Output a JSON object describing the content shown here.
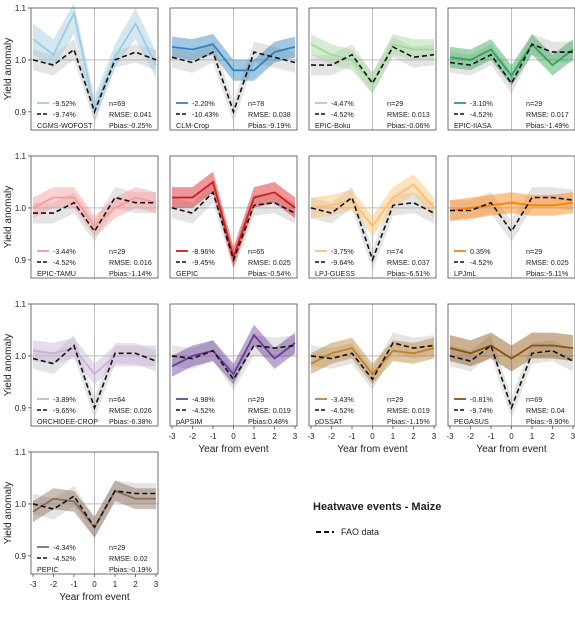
{
  "chart_data": {
    "type": "line",
    "title": "",
    "xlabel": "Year from event",
    "ylabel": "Yield anomaly",
    "x": [
      -3,
      -2,
      -1,
      0,
      1,
      2,
      3
    ],
    "xticks": [
      "-3",
      "-2",
      "-1",
      "0",
      "1",
      "2",
      "3"
    ],
    "ylim": [
      0.865,
      1.1
    ],
    "yticks": [
      "0.9",
      "1.0",
      "1.1"
    ],
    "reference_line": 1.0,
    "legend": {
      "title": "Heatwave events - Maize",
      "fao_label": "FAO data"
    },
    "panels": [
      {
        "model": "CGMS-WOFOST",
        "color": "#9ecae1",
        "model_pct": "-9.52%",
        "fao_pct": "-9.74%",
        "n": "n=69",
        "rmse": "RMSE: 0.041",
        "pbias": "Pbias:-0.25%",
        "model_values": [
          1.04,
          1.01,
          1.09,
          0.905,
          1.005,
          1.07,
          0.99
        ],
        "model_lower": [
          1.01,
          0.985,
          1.05,
          0.88,
          0.985,
          1.04,
          0.965
        ],
        "model_upper": [
          1.07,
          1.04,
          1.11,
          0.93,
          1.03,
          1.1,
          1.015
        ],
        "fao_values": [
          1.0,
          0.99,
          1.02,
          0.9,
          1.0,
          1.015,
          1.0
        ],
        "fao_lower": [
          0.98,
          0.97,
          1.0,
          0.88,
          0.985,
          0.995,
          0.98
        ],
        "fao_upper": [
          1.02,
          1.01,
          1.04,
          0.92,
          1.015,
          1.03,
          1.02
        ]
      },
      {
        "model": "CLM-Crop",
        "color": "#3182bd",
        "model_pct": "-2.20%",
        "fao_pct": "-10.43%",
        "n": "n=78",
        "rmse": "RMSE: 0.038",
        "pbias": "Pbias:-9.19%",
        "model_values": [
          1.025,
          1.02,
          1.03,
          0.98,
          0.98,
          1.015,
          1.025
        ],
        "model_lower": [
          1.005,
          1.0,
          1.01,
          0.96,
          0.96,
          0.995,
          1.005
        ],
        "model_upper": [
          1.045,
          1.04,
          1.05,
          1.0,
          1.0,
          1.035,
          1.045
        ],
        "fao_values": [
          1.005,
          0.995,
          1.015,
          0.9,
          1.015,
          1.005,
          0.995
        ],
        "fao_lower": [
          0.985,
          0.975,
          0.995,
          0.88,
          0.995,
          0.985,
          0.975
        ],
        "fao_upper": [
          1.025,
          1.015,
          1.035,
          0.92,
          1.035,
          1.025,
          1.015
        ]
      },
      {
        "model": "EPIC-Boku",
        "color": "#a1d99b",
        "model_pct": "-4.47%",
        "fao_pct": "-4.52%",
        "n": "n=29",
        "rmse": "RMSE: 0.013",
        "pbias": "Pbias:-0.06%",
        "model_values": [
          1.03,
          1.01,
          1.0,
          0.955,
          1.03,
          1.02,
          1.02
        ],
        "model_lower": [
          1.01,
          0.99,
          0.98,
          0.935,
          1.01,
          1.0,
          1.0
        ],
        "model_upper": [
          1.05,
          1.03,
          1.02,
          0.975,
          1.05,
          1.04,
          1.04
        ],
        "fao_values": [
          0.99,
          0.99,
          1.01,
          0.955,
          1.025,
          1.005,
          1.01
        ],
        "fao_lower": [
          0.97,
          0.97,
          0.99,
          0.935,
          1.005,
          0.985,
          0.99
        ],
        "fao_upper": [
          1.01,
          1.01,
          1.03,
          0.975,
          1.045,
          1.025,
          1.03
        ]
      },
      {
        "model": "EPIC-IIASA",
        "color": "#31a354",
        "model_pct": "-3.10%",
        "fao_pct": "-4.52%",
        "n": "n=29",
        "rmse": "RMSE: 0.017",
        "pbias": "Pbias:-1.49%",
        "model_values": [
          1.005,
          1.0,
          1.02,
          0.97,
          1.03,
          0.99,
          1.02
        ],
        "model_lower": [
          0.985,
          0.98,
          1.0,
          0.95,
          1.01,
          0.97,
          1.0
        ],
        "model_upper": [
          1.025,
          1.02,
          1.04,
          0.99,
          1.05,
          1.01,
          1.04
        ],
        "fao_values": [
          0.995,
          0.99,
          1.01,
          0.955,
          1.03,
          1.015,
          1.015
        ],
        "fao_lower": [
          0.975,
          0.97,
          0.99,
          0.935,
          1.01,
          0.995,
          0.995
        ],
        "fao_upper": [
          1.015,
          1.01,
          1.03,
          0.975,
          1.05,
          1.035,
          1.035
        ]
      },
      {
        "model": "EPIC-TAMU",
        "color": "#fb9a99",
        "model_pct": "-3.44%",
        "fao_pct": "-4.52%",
        "n": "n=29",
        "rmse": "RMSE: 0.016",
        "pbias": "Pbias:-1.14%",
        "model_values": [
          1.0,
          1.02,
          1.02,
          0.965,
          1.0,
          1.02,
          1.01
        ],
        "model_lower": [
          0.98,
          1.0,
          1.0,
          0.945,
          0.98,
          1.0,
          0.99
        ],
        "model_upper": [
          1.02,
          1.04,
          1.04,
          0.985,
          1.02,
          1.04,
          1.03
        ],
        "fao_values": [
          0.99,
          0.99,
          1.01,
          0.955,
          1.02,
          1.01,
          1.01
        ],
        "fao_lower": [
          0.97,
          0.97,
          0.99,
          0.935,
          1.0,
          0.99,
          0.99
        ],
        "fao_upper": [
          1.01,
          1.01,
          1.03,
          0.975,
          1.04,
          1.03,
          1.03
        ]
      },
      {
        "model": "GEPIC",
        "color": "#d7191c",
        "model_pct": "-8.96%",
        "fao_pct": "-9.45%",
        "n": "n=65",
        "rmse": "RMSE: 0.025",
        "pbias": "Pbias:-0.54%",
        "model_values": [
          1.02,
          1.02,
          1.05,
          0.905,
          1.02,
          1.03,
          1.0
        ],
        "model_lower": [
          1.0,
          1.0,
          1.03,
          0.885,
          1.0,
          1.01,
          0.98
        ],
        "model_upper": [
          1.04,
          1.04,
          1.07,
          0.925,
          1.04,
          1.05,
          1.02
        ],
        "fao_values": [
          1.0,
          0.99,
          1.03,
          0.9,
          1.005,
          1.01,
          0.99
        ],
        "fao_lower": [
          0.98,
          0.97,
          1.01,
          0.88,
          0.985,
          0.99,
          0.97
        ],
        "fao_upper": [
          1.02,
          1.01,
          1.05,
          0.92,
          1.025,
          1.03,
          1.01
        ]
      },
      {
        "model": "LPJ-GUESS",
        "color": "#fdbf6f",
        "model_pct": "-3.75%",
        "fao_pct": "-9.64%",
        "n": "n=74",
        "rmse": "RMSE: 0.037",
        "pbias": "Pbias:-6.51%",
        "model_values": [
          1.0,
          1.005,
          1.015,
          0.965,
          1.02,
          1.045,
          1.0
        ],
        "model_lower": [
          0.98,
          0.985,
          0.995,
          0.945,
          1.0,
          1.025,
          0.98
        ],
        "model_upper": [
          1.02,
          1.025,
          1.035,
          0.985,
          1.04,
          1.065,
          1.02
        ],
        "fao_values": [
          1.0,
          0.99,
          1.02,
          0.9,
          1.005,
          1.01,
          0.99
        ],
        "fao_lower": [
          0.98,
          0.97,
          1.0,
          0.88,
          0.985,
          0.99,
          0.97
        ],
        "fao_upper": [
          1.02,
          1.01,
          1.04,
          0.92,
          1.025,
          1.03,
          1.01
        ]
      },
      {
        "model": "LPJmL",
        "color": "#ff7f00",
        "model_pct": "0.35%",
        "fao_pct": "-4.52%",
        "n": "n=29",
        "rmse": "RMSE: 0.025",
        "pbias": "Pbias:-5.11%",
        "model_values": [
          0.995,
          1.0,
          1.005,
          1.01,
          1.005,
          1.005,
          1.01
        ],
        "model_lower": [
          0.975,
          0.98,
          0.985,
          0.99,
          0.985,
          0.985,
          0.99
        ],
        "model_upper": [
          1.015,
          1.02,
          1.025,
          1.03,
          1.025,
          1.025,
          1.03
        ],
        "fao_values": [
          0.995,
          0.995,
          1.01,
          0.955,
          1.02,
          1.02,
          1.015
        ],
        "fao_lower": [
          0.975,
          0.975,
          0.99,
          0.935,
          1.0,
          1.0,
          0.995
        ],
        "fao_upper": [
          1.015,
          1.015,
          1.03,
          0.975,
          1.04,
          1.04,
          1.035
        ]
      },
      {
        "model": "ORCHIDEE-CROP",
        "color": "#cab2d6",
        "model_pct": "-3.89%",
        "fao_pct": "-9.65%",
        "n": "n=64",
        "rmse": "RMSE: 0.026",
        "pbias": "Pbias:-6.38%",
        "model_values": [
          1.01,
          1.005,
          1.015,
          0.965,
          1.0,
          1.0,
          1.0
        ],
        "model_lower": [
          0.99,
          0.985,
          0.995,
          0.945,
          0.98,
          0.98,
          0.98
        ],
        "model_upper": [
          1.03,
          1.025,
          1.035,
          0.985,
          1.02,
          1.02,
          1.02
        ],
        "fao_values": [
          0.995,
          0.985,
          1.02,
          0.9,
          1.005,
          1.005,
          0.99
        ],
        "fao_lower": [
          0.975,
          0.965,
          1.0,
          0.88,
          0.985,
          0.985,
          0.97
        ],
        "fao_upper": [
          1.015,
          1.005,
          1.04,
          0.92,
          1.025,
          1.025,
          1.01
        ]
      },
      {
        "model": "pAPSIM",
        "color": "#6a3d9a",
        "model_pct": "-4.98%",
        "fao_pct": "-4.52%",
        "n": "n=29",
        "rmse": "RMSE: 0.019",
        "pbias": "Pbias:0.48%",
        "model_values": [
          0.98,
          1.0,
          1.01,
          0.965,
          1.04,
          0.995,
          1.025
        ],
        "model_lower": [
          0.96,
          0.98,
          0.99,
          0.945,
          1.02,
          0.975,
          1.005
        ],
        "model_upper": [
          1.0,
          1.02,
          1.03,
          0.985,
          1.06,
          1.015,
          1.045
        ],
        "fao_values": [
          1.0,
          0.995,
          1.01,
          0.955,
          1.02,
          1.015,
          1.02
        ],
        "fao_lower": [
          0.98,
          0.975,
          0.99,
          0.935,
          1.0,
          0.995,
          1.0
        ],
        "fao_upper": [
          1.02,
          1.015,
          1.03,
          0.975,
          1.04,
          1.035,
          1.04
        ]
      },
      {
        "model": "pDSSAT",
        "color": "#bf812d",
        "model_pct": "-3.43%",
        "fao_pct": "-4.52%",
        "n": "n=29",
        "rmse": "RMSE: 0.019",
        "pbias": "Pbias:-1.15%",
        "model_values": [
          0.985,
          1.005,
          1.015,
          0.965,
          1.01,
          1.005,
          1.015
        ],
        "model_lower": [
          0.965,
          0.985,
          0.995,
          0.945,
          0.99,
          0.985,
          0.995
        ],
        "model_upper": [
          1.005,
          1.025,
          1.035,
          0.985,
          1.03,
          1.025,
          1.035
        ],
        "fao_values": [
          1.0,
          0.995,
          1.005,
          0.955,
          1.025,
          1.015,
          1.02
        ],
        "fao_lower": [
          0.98,
          0.975,
          0.985,
          0.935,
          1.005,
          0.995,
          1.0
        ],
        "fao_upper": [
          1.02,
          1.015,
          1.025,
          0.975,
          1.045,
          1.035,
          1.04
        ]
      },
      {
        "model": "PEGASUS",
        "color": "#8c510a",
        "model_pct": "-0.81%",
        "fao_pct": "-9.74%",
        "n": "n=69",
        "rmse": "RMSE: 0.04",
        "pbias": "Pbias:-9.90%",
        "model_values": [
          1.015,
          1.005,
          1.02,
          0.995,
          1.02,
          1.02,
          1.015
        ],
        "model_lower": [
          0.99,
          0.98,
          0.995,
          0.97,
          0.995,
          0.995,
          0.99
        ],
        "model_upper": [
          1.04,
          1.03,
          1.045,
          1.02,
          1.045,
          1.045,
          1.04
        ],
        "fao_values": [
          1.0,
          0.99,
          1.02,
          0.9,
          1.005,
          1.01,
          0.99
        ],
        "fao_lower": [
          0.98,
          0.97,
          1.0,
          0.88,
          0.985,
          0.99,
          0.97
        ],
        "fao_upper": [
          1.02,
          1.01,
          1.04,
          0.92,
          1.025,
          1.03,
          1.01
        ]
      },
      {
        "model": "PEPIC",
        "color": "#8c6d5a",
        "model_pct": "-4.34%",
        "fao_pct": "-4.52%",
        "n": "n=29",
        "rmse": "RMSE: 0.02",
        "pbias": "Pbias:-0.19%",
        "model_values": [
          0.985,
          1.01,
          1.005,
          0.955,
          1.025,
          1.01,
          1.01
        ],
        "model_lower": [
          0.965,
          0.99,
          0.985,
          0.935,
          1.005,
          0.99,
          0.99
        ],
        "model_upper": [
          1.005,
          1.03,
          1.025,
          0.975,
          1.045,
          1.03,
          1.03
        ],
        "fao_values": [
          1.0,
          0.99,
          1.015,
          0.955,
          1.025,
          1.02,
          1.02
        ],
        "fao_lower": [
          0.98,
          0.97,
          0.995,
          0.935,
          1.005,
          1.0,
          1.0
        ],
        "fao_upper": [
          1.02,
          1.01,
          1.035,
          0.975,
          1.045,
          1.04,
          1.04
        ]
      }
    ]
  }
}
